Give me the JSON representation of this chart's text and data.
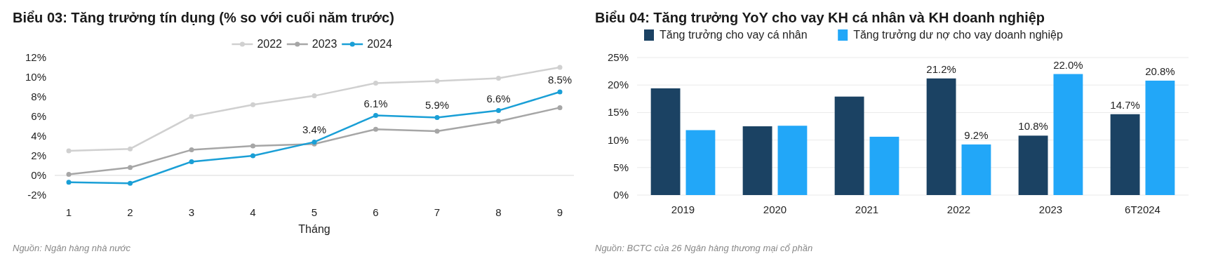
{
  "chart_data": [
    {
      "type": "line",
      "title": "Biểu 03: Tăng trưởng tín dụng (% so với cuối năm trước)",
      "xlabel": "Tháng",
      "categories": [
        "1",
        "2",
        "3",
        "4",
        "5",
        "6",
        "7",
        "8",
        "9"
      ],
      "ylim": [
        -2,
        12
      ],
      "yticks": [
        {
          "value": -2,
          "label": "-2%"
        },
        {
          "value": 0,
          "label": "0%"
        },
        {
          "value": 2,
          "label": "2%"
        },
        {
          "value": 4,
          "label": "4%"
        },
        {
          "value": 6,
          "label": "6%"
        },
        {
          "value": 8,
          "label": "8%"
        },
        {
          "value": 10,
          "label": "10%"
        },
        {
          "value": 12,
          "label": "12%"
        }
      ],
      "ref_lines": [
        {
          "axis": "y",
          "value": 0,
          "color": "#d9d9d9"
        }
      ],
      "legend": "top",
      "marker": "circle",
      "annotations": [
        "Nguồn: Ngân hàng nhà nước"
      ],
      "series": [
        {
          "name": "2022",
          "color": "#d0d0d0",
          "values": [
            2.5,
            2.7,
            6.0,
            7.2,
            8.1,
            9.4,
            9.6,
            9.9,
            11.0
          ]
        },
        {
          "name": "2023",
          "color": "#a6a6a6",
          "values": [
            0.1,
            0.8,
            2.6,
            3.0,
            3.2,
            4.7,
            4.5,
            5.5,
            6.9
          ]
        },
        {
          "name": "2024",
          "color": "#1a9fd6",
          "values": [
            -0.7,
            -0.8,
            1.4,
            2.0,
            3.4,
            6.1,
            5.9,
            6.6,
            8.5
          ],
          "value_labels": [
            null,
            null,
            null,
            null,
            "3.4%",
            "6.1%",
            "5.9%",
            "6.6%",
            "8.5%"
          ]
        }
      ]
    },
    {
      "type": "bar",
      "title": "Biểu 04: Tăng trưởng YoY cho vay KH cá nhân và KH doanh nghiệp",
      "categories": [
        "2019",
        "2020",
        "2021",
        "2022",
        "2023",
        "6T2024"
      ],
      "ylim": [
        0,
        25
      ],
      "yticks": [
        {
          "value": 0,
          "label": "0%"
        },
        {
          "value": 5,
          "label": "5%"
        },
        {
          "value": 10,
          "label": "10%"
        },
        {
          "value": 15,
          "label": "15%"
        },
        {
          "value": 20,
          "label": "20%"
        },
        {
          "value": 25,
          "label": "25%"
        }
      ],
      "grid": "y",
      "legend": "top",
      "annotations": [
        "Nguồn: BCTC của 26 Ngân hàng thương mại cổ phần"
      ],
      "series": [
        {
          "name": "Tăng trưởng cho vay cá nhân",
          "color": "#1b4263",
          "values": [
            19.4,
            12.5,
            17.9,
            21.2,
            10.8,
            14.7
          ],
          "value_labels": [
            null,
            null,
            null,
            "21.2%",
            "10.8%",
            "14.7%"
          ]
        },
        {
          "name": "Tăng trưởng dư nợ cho vay doanh nghiệp",
          "color": "#22a7f8",
          "values": [
            11.8,
            12.6,
            10.6,
            9.2,
            22.0,
            20.8
          ],
          "value_labels": [
            null,
            null,
            null,
            "9.2%",
            "22.0%",
            "20.8%"
          ]
        }
      ]
    }
  ]
}
